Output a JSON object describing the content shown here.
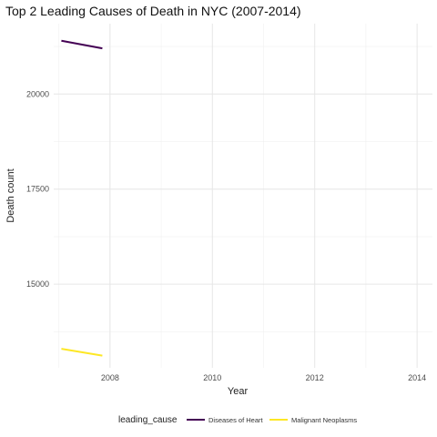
{
  "chart_data": {
    "type": "line",
    "title": "Top 2 Leading Causes of Death in NYC (2007-2014)",
    "xlabel": "Year",
    "ylabel": "Death count",
    "xlim": [
      2006.9,
      2014.3
    ],
    "ylim": [
      12800,
      21850
    ],
    "x_ticks": [
      2008,
      2010,
      2012,
      2014
    ],
    "x_tick_labels": [
      "2008",
      "2010",
      "2012",
      "2014"
    ],
    "y_ticks": [
      15000,
      17500,
      20000
    ],
    "y_tick_labels": [
      "15000",
      "17500",
      "20000"
    ],
    "grid": true,
    "legend": {
      "title": "leading_cause",
      "position": "bottom"
    },
    "series": [
      {
        "name": "Diseases of Heart",
        "color": "#440154",
        "x": [
          2007.05,
          2007.85
        ],
        "y": [
          21400,
          21200
        ]
      },
      {
        "name": "Malignant Neoplasms",
        "color": "#FDE725",
        "x": [
          2007.05,
          2007.85
        ],
        "y": [
          13300,
          13120
        ]
      }
    ]
  }
}
